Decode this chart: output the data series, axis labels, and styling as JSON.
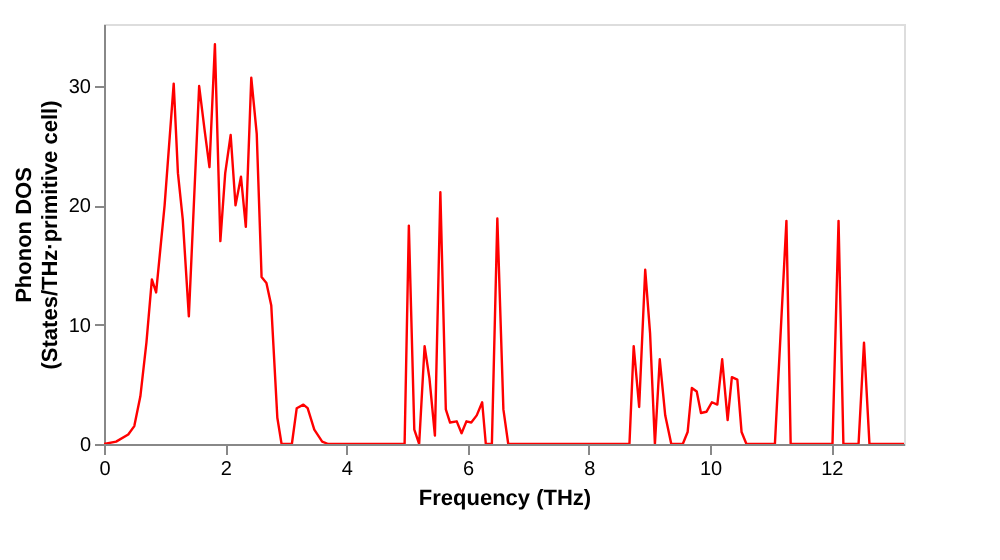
{
  "chart_data": {
    "type": "line",
    "xlabel": "Frequency (THz)",
    "ylabel": "Phonon DOS\n(States/THz·primitive cell)",
    "x": [
      0,
      0.2,
      0.4,
      0.5,
      0.6,
      0.7,
      0.79,
      0.86,
      1.0,
      1.15,
      1.22,
      1.3,
      1.4,
      1.57,
      1.66,
      1.74,
      1.83,
      1.92,
      2.0,
      2.09,
      2.17,
      2.26,
      2.34,
      2.43,
      2.52,
      2.6,
      2.68,
      2.76,
      2.86,
      2.93,
      3.1,
      3.18,
      3.29,
      3.36,
      3.47,
      3.6,
      3.7,
      4.96,
      5.03,
      5.12,
      5.2,
      5.29,
      5.37,
      5.46,
      5.55,
      5.64,
      5.71,
      5.82,
      5.9,
      5.98,
      6.06,
      6.15,
      6.24,
      6.3,
      6.4,
      6.49,
      6.59,
      6.67,
      8.67,
      8.74,
      8.83,
      8.93,
      9.01,
      9.09,
      9.17,
      9.26,
      9.36,
      9.55,
      9.63,
      9.7,
      9.78,
      9.85,
      9.94,
      10.03,
      10.12,
      10.2,
      10.29,
      10.36,
      10.45,
      10.52,
      10.6,
      11.07,
      11.26,
      11.33,
      12.02,
      12.12,
      12.2,
      12.45,
      12.54,
      12.63,
      13.2
    ],
    "series": [
      {
        "color": "#ff0000",
        "values": [
          0,
          0.2,
          0.8,
          1.5,
          4,
          8.5,
          13.8,
          12.7,
          20,
          30.2,
          22.7,
          18.8,
          10.7,
          30,
          26.3,
          23.2,
          33.5,
          17,
          22.7,
          25.9,
          20,
          22.4,
          18.2,
          30.7,
          26,
          14,
          13.5,
          11.6,
          2.2,
          0,
          0,
          3,
          3.3,
          3,
          1.2,
          0.2,
          0,
          0,
          18.3,
          1.2,
          0,
          8.2,
          5.5,
          0.7,
          21.1,
          2.9,
          1.8,
          1.9,
          0.9,
          1.9,
          1.8,
          2.4,
          3.5,
          0,
          0,
          18.9,
          2.9,
          0,
          0,
          8.2,
          3.1,
          14.6,
          9.3,
          0,
          7.1,
          2.4,
          0,
          0,
          1,
          4.7,
          4.4,
          2.6,
          2.7,
          3.5,
          3.3,
          7.1,
          2,
          5.6,
          5.4,
          1,
          0,
          0,
          18.7,
          0,
          0,
          18.7,
          0,
          0,
          8.5,
          0,
          0
        ]
      }
    ],
    "xlim": [
      0,
      13.2
    ],
    "xticks": [
      0,
      2,
      4,
      6,
      8,
      10,
      12
    ],
    "ylim": [
      0,
      35.2
    ],
    "yticks": [
      0,
      10,
      20,
      30
    ],
    "grid": false,
    "legend": false,
    "marker": "none",
    "line_style": "solid"
  }
}
